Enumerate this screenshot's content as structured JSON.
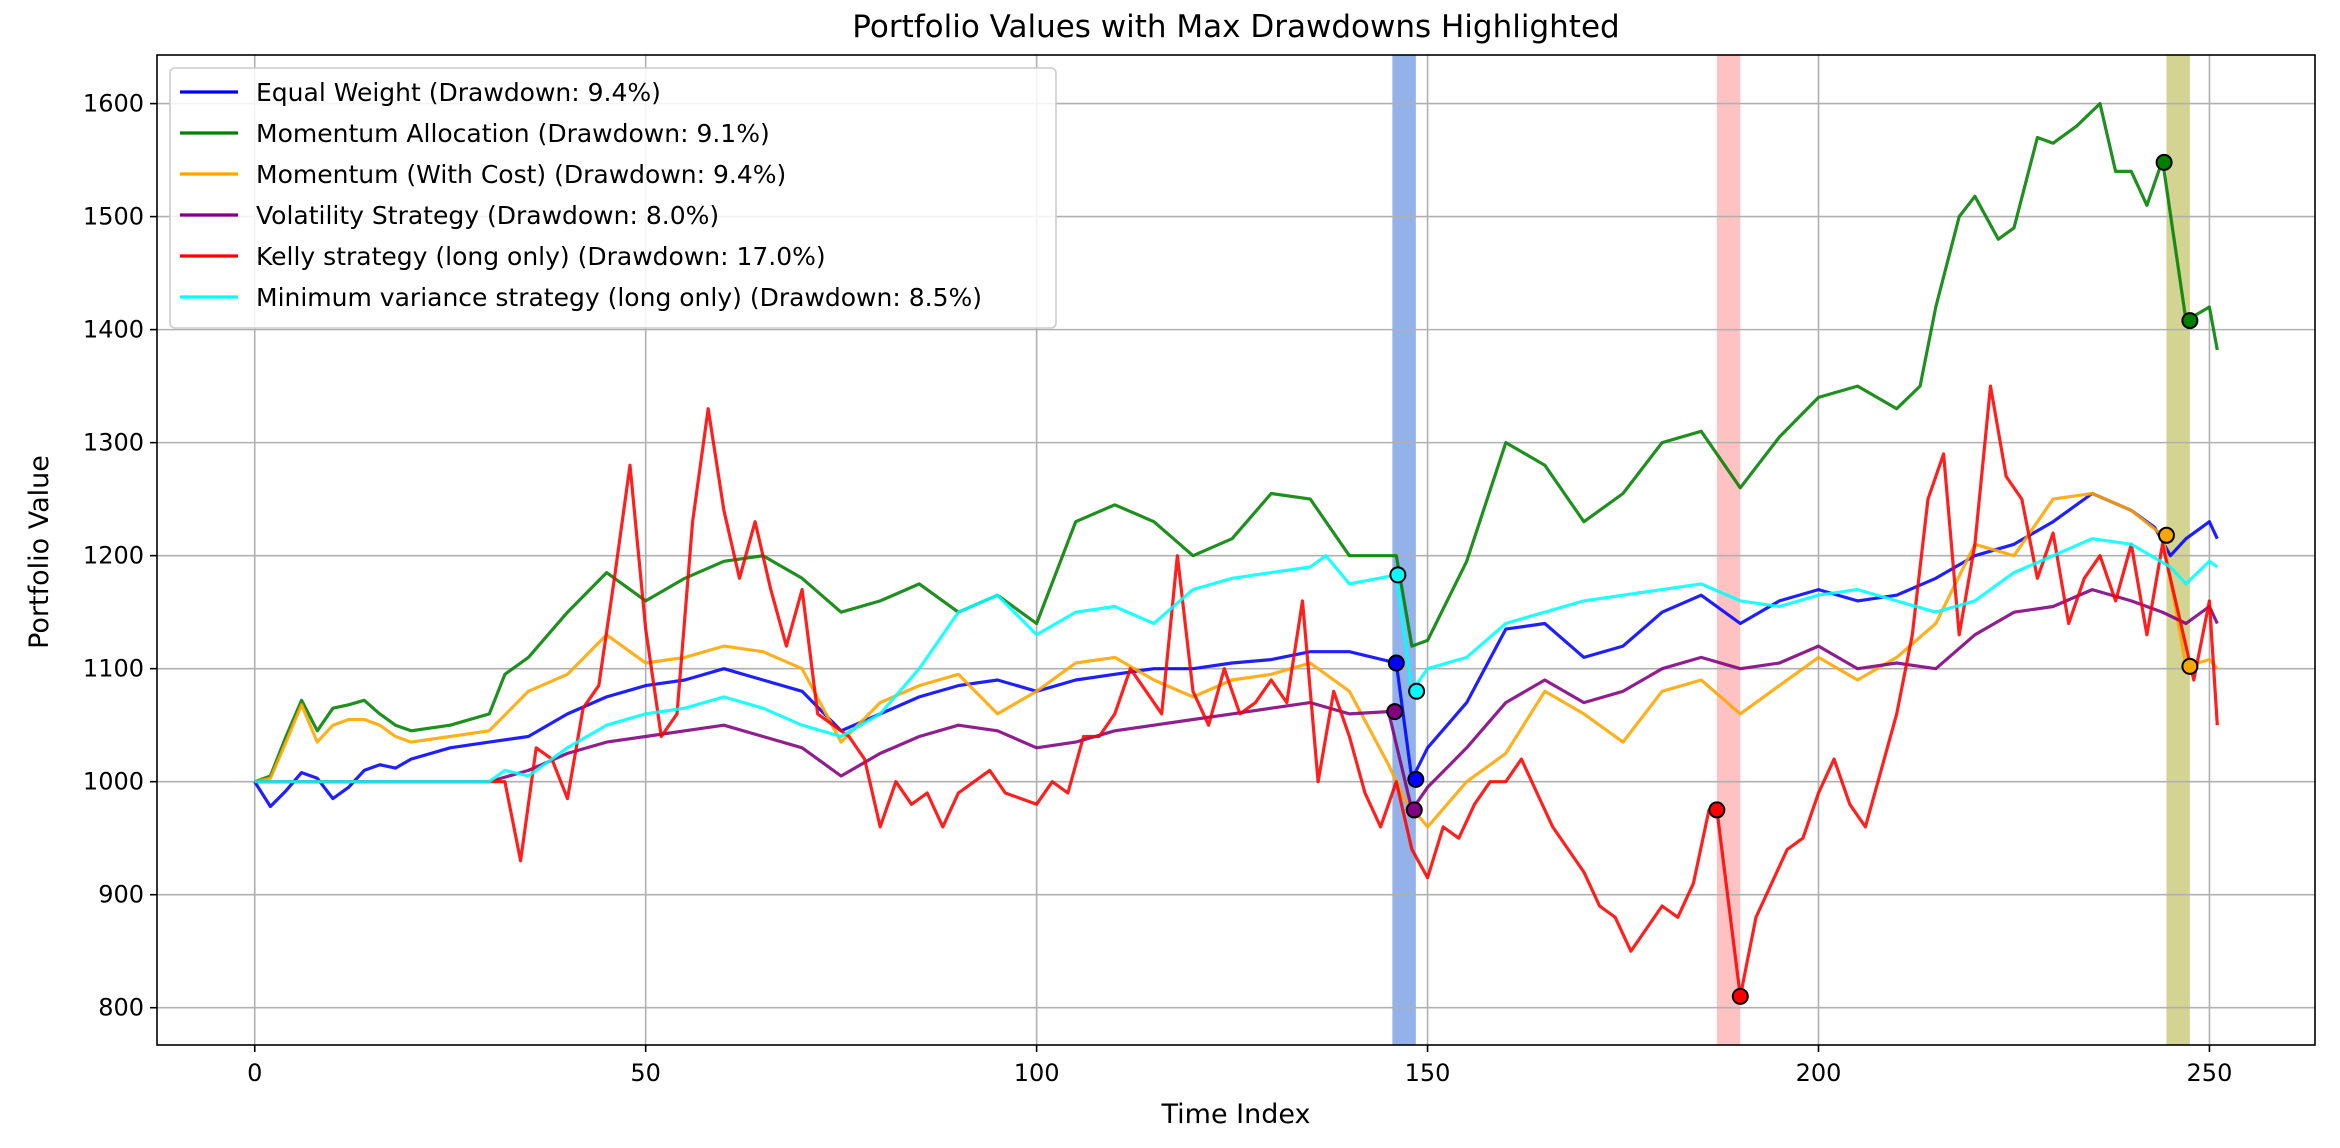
{
  "chart_data": {
    "type": "line",
    "title": "Portfolio Values with Max Drawdowns Highlighted",
    "xlabel": "Time Index",
    "ylabel": "Portfolio Value",
    "xlim": [
      -12.5,
      263.5
    ],
    "ylim": [
      767,
      1643
    ],
    "xticks": [
      0,
      50,
      100,
      150,
      200,
      250
    ],
    "yticks": [
      800,
      900,
      1000,
      1100,
      1200,
      1300,
      1400,
      1500,
      1600
    ],
    "grid": true,
    "legend_position": "top-left",
    "series": [
      {
        "name": "Equal Weight (Drawdown: 9.4%)",
        "color": "#0000ff",
        "x": [
          0,
          2,
          4,
          6,
          8,
          10,
          12,
          14,
          16,
          18,
          20,
          25,
          30,
          35,
          40,
          45,
          50,
          55,
          60,
          65,
          70,
          75,
          80,
          85,
          90,
          95,
          100,
          105,
          110,
          115,
          120,
          125,
          130,
          135,
          140,
          146,
          148,
          150,
          155,
          160,
          165,
          170,
          175,
          180,
          185,
          190,
          195,
          200,
          205,
          210,
          215,
          220,
          225,
          230,
          235,
          240,
          243,
          245,
          247,
          250,
          251
        ],
        "values": [
          1000,
          978,
          992,
          1008,
          1003,
          985,
          995,
          1010,
          1015,
          1012,
          1020,
          1030,
          1035,
          1040,
          1060,
          1075,
          1085,
          1090,
          1100,
          1090,
          1080,
          1045,
          1060,
          1075,
          1085,
          1090,
          1080,
          1090,
          1095,
          1100,
          1100,
          1105,
          1108,
          1115,
          1115,
          1105,
          1002,
          1030,
          1070,
          1135,
          1140,
          1110,
          1120,
          1150,
          1165,
          1140,
          1160,
          1170,
          1160,
          1165,
          1180,
          1200,
          1210,
          1230,
          1255,
          1240,
          1225,
          1200,
          1215,
          1230,
          1215
        ]
      },
      {
        "name": "Momentum Allocation (Drawdown: 9.1%)",
        "color": "#008000",
        "x": [
          0,
          2,
          4,
          6,
          8,
          10,
          12,
          14,
          16,
          18,
          20,
          25,
          30,
          32,
          35,
          40,
          45,
          50,
          55,
          60,
          65,
          70,
          75,
          80,
          85,
          90,
          95,
          100,
          105,
          110,
          115,
          120,
          125,
          130,
          135,
          140,
          146,
          148,
          150,
          155,
          160,
          165,
          170,
          175,
          180,
          185,
          190,
          195,
          200,
          205,
          210,
          213,
          215,
          218,
          220,
          223,
          225,
          228,
          230,
          233,
          236,
          238,
          240,
          242,
          244,
          247,
          250,
          251
        ],
        "values": [
          1000,
          1005,
          1040,
          1072,
          1045,
          1065,
          1068,
          1072,
          1060,
          1050,
          1045,
          1050,
          1060,
          1095,
          1110,
          1150,
          1185,
          1160,
          1180,
          1195,
          1200,
          1180,
          1150,
          1160,
          1175,
          1150,
          1165,
          1140,
          1230,
          1245,
          1230,
          1200,
          1215,
          1255,
          1250,
          1200,
          1200,
          1120,
          1125,
          1195,
          1300,
          1280,
          1230,
          1255,
          1300,
          1310,
          1260,
          1305,
          1340,
          1350,
          1330,
          1350,
          1420,
          1500,
          1518,
          1480,
          1490,
          1570,
          1565,
          1580,
          1600,
          1540,
          1540,
          1510,
          1550,
          1408,
          1420,
          1382
        ]
      },
      {
        "name": "Momentum (With Cost) (Drawdown: 9.4%)",
        "color": "#ffa500",
        "x": [
          0,
          2,
          4,
          6,
          8,
          10,
          12,
          14,
          16,
          18,
          20,
          25,
          30,
          35,
          40,
          45,
          50,
          55,
          60,
          65,
          70,
          75,
          80,
          85,
          90,
          95,
          100,
          105,
          110,
          115,
          120,
          125,
          130,
          135,
          140,
          145,
          147,
          150,
          155,
          160,
          165,
          170,
          175,
          180,
          185,
          190,
          195,
          200,
          205,
          210,
          215,
          220,
          225,
          230,
          235,
          240,
          244,
          247,
          250,
          251
        ],
        "values": [
          1000,
          1003,
          1035,
          1068,
          1035,
          1050,
          1055,
          1055,
          1050,
          1040,
          1035,
          1040,
          1045,
          1080,
          1095,
          1130,
          1105,
          1110,
          1120,
          1115,
          1100,
          1035,
          1070,
          1085,
          1095,
          1060,
          1080,
          1105,
          1110,
          1090,
          1075,
          1090,
          1095,
          1105,
          1080,
          1015,
          985,
          960,
          1000,
          1025,
          1080,
          1060,
          1035,
          1080,
          1090,
          1060,
          1085,
          1110,
          1090,
          1110,
          1140,
          1210,
          1200,
          1250,
          1255,
          1240,
          1218,
          1102,
          1108,
          1100
        ]
      },
      {
        "name": "Volatility Strategy (Drawdown: 8.0%)",
        "color": "#800080",
        "x": [
          0,
          5,
          10,
          15,
          20,
          25,
          30,
          35,
          40,
          45,
          50,
          55,
          60,
          65,
          70,
          75,
          80,
          85,
          90,
          95,
          100,
          105,
          110,
          115,
          120,
          125,
          130,
          135,
          140,
          145,
          148,
          150,
          155,
          160,
          165,
          170,
          175,
          180,
          185,
          190,
          195,
          200,
          205,
          210,
          215,
          220,
          225,
          230,
          235,
          240,
          244,
          247,
          250,
          251
        ],
        "values": [
          1000,
          1000,
          1000,
          1000,
          1000,
          1000,
          1000,
          1010,
          1025,
          1035,
          1040,
          1045,
          1050,
          1040,
          1030,
          1005,
          1025,
          1040,
          1050,
          1045,
          1030,
          1035,
          1045,
          1050,
          1055,
          1060,
          1065,
          1070,
          1060,
          1062,
          975,
          995,
          1030,
          1070,
          1090,
          1070,
          1080,
          1100,
          1110,
          1100,
          1105,
          1120,
          1100,
          1105,
          1100,
          1130,
          1150,
          1155,
          1170,
          1160,
          1150,
          1140,
          1155,
          1140
        ]
      },
      {
        "name": "Kelly strategy (long only) (Drawdown: 17.0%)",
        "color": "#ff0000",
        "x": [
          0,
          5,
          10,
          15,
          20,
          25,
          30,
          32,
          34,
          36,
          38,
          40,
          42,
          44,
          46,
          48,
          50,
          52,
          54,
          56,
          58,
          60,
          62,
          64,
          66,
          68,
          70,
          72,
          74,
          76,
          78,
          80,
          82,
          84,
          86,
          88,
          90,
          92,
          94,
          96,
          98,
          100,
          102,
          104,
          106,
          108,
          110,
          112,
          114,
          116,
          118,
          120,
          122,
          124,
          126,
          128,
          130,
          132,
          134,
          136,
          138,
          140,
          142,
          144,
          146,
          148,
          150,
          152,
          154,
          156,
          158,
          160,
          162,
          164,
          166,
          168,
          170,
          172,
          174,
          176,
          178,
          180,
          182,
          184,
          186,
          187,
          188,
          190,
          192,
          194,
          196,
          198,
          200,
          202,
          204,
          206,
          208,
          210,
          212,
          214,
          216,
          218,
          220,
          222,
          224,
          226,
          228,
          230,
          232,
          234,
          236,
          238,
          240,
          242,
          244,
          246,
          248,
          250,
          251
        ],
        "values": [
          1000,
          1000,
          1000,
          1000,
          1000,
          1000,
          1000,
          1000,
          930,
          1030,
          1020,
          985,
          1065,
          1085,
          1180,
          1280,
          1135,
          1040,
          1060,
          1230,
          1330,
          1240,
          1180,
          1230,
          1170,
          1120,
          1170,
          1060,
          1050,
          1040,
          1020,
          960,
          1000,
          980,
          990,
          960,
          990,
          1000,
          1010,
          990,
          985,
          980,
          1000,
          990,
          1040,
          1040,
          1060,
          1100,
          1080,
          1060,
          1200,
          1080,
          1050,
          1100,
          1060,
          1070,
          1090,
          1070,
          1160,
          1000,
          1080,
          1040,
          990,
          960,
          1000,
          940,
          915,
          960,
          950,
          980,
          1000,
          1000,
          1020,
          990,
          960,
          940,
          920,
          890,
          880,
          850,
          870,
          890,
          880,
          910,
          975,
          975,
          920,
          810,
          880,
          910,
          940,
          950,
          990,
          1020,
          980,
          960,
          1010,
          1060,
          1130,
          1250,
          1290,
          1130,
          1210,
          1350,
          1270,
          1250,
          1180,
          1220,
          1140,
          1180,
          1200,
          1160,
          1210,
          1130,
          1210,
          1150,
          1090,
          1160,
          1050
        ]
      },
      {
        "name": "Minimum variance strategy (long only) (Drawdown: 8.5%)",
        "color": "#00ffff",
        "x": [
          0,
          10,
          20,
          30,
          32,
          35,
          40,
          45,
          50,
          55,
          60,
          65,
          70,
          75,
          80,
          85,
          90,
          95,
          100,
          105,
          110,
          115,
          120,
          125,
          130,
          135,
          137,
          140,
          146,
          148,
          150,
          155,
          160,
          165,
          170,
          175,
          180,
          185,
          190,
          195,
          200,
          205,
          210,
          215,
          220,
          225,
          230,
          235,
          240,
          245,
          247,
          250,
          251
        ],
        "values": [
          1000,
          1000,
          1000,
          1000,
          1010,
          1005,
          1030,
          1050,
          1060,
          1065,
          1075,
          1065,
          1050,
          1040,
          1060,
          1100,
          1150,
          1165,
          1130,
          1150,
          1155,
          1140,
          1170,
          1180,
          1185,
          1190,
          1200,
          1175,
          1183,
          1080,
          1100,
          1110,
          1140,
          1150,
          1160,
          1165,
          1170,
          1175,
          1160,
          1155,
          1165,
          1170,
          1160,
          1150,
          1160,
          1185,
          1200,
          1215,
          1210,
          1190,
          1175,
          1195,
          1190
        ]
      }
    ],
    "drawdown_spans": [
      {
        "x_start": 145.5,
        "x_end": 148.5,
        "color": "#4a7fdb"
      },
      {
        "x_start": 187,
        "x_end": 190,
        "color": "#ff9a9a"
      },
      {
        "x_start": 244.5,
        "x_end": 247.5,
        "color": "#b5b54a"
      }
    ],
    "drawdown_markers": [
      {
        "x": 146,
        "y": 1105,
        "color": "#0000ff"
      },
      {
        "x": 148.5,
        "y": 1002,
        "color": "#0000ff"
      },
      {
        "x": 244.2,
        "y": 1548,
        "color": "#008000"
      },
      {
        "x": 247.5,
        "y": 1408,
        "color": "#008000"
      },
      {
        "x": 244.5,
        "y": 1218,
        "color": "#ffa500"
      },
      {
        "x": 247.5,
        "y": 1102,
        "color": "#ffa500"
      },
      {
        "x": 145.8,
        "y": 1062,
        "color": "#800080"
      },
      {
        "x": 148.3,
        "y": 975,
        "color": "#800080"
      },
      {
        "x": 187,
        "y": 975,
        "color": "#ff0000"
      },
      {
        "x": 190,
        "y": 810,
        "color": "#ff0000"
      },
      {
        "x": 146.2,
        "y": 1183,
        "color": "#00ffff"
      },
      {
        "x": 148.6,
        "y": 1080,
        "color": "#00ffff"
      }
    ]
  }
}
